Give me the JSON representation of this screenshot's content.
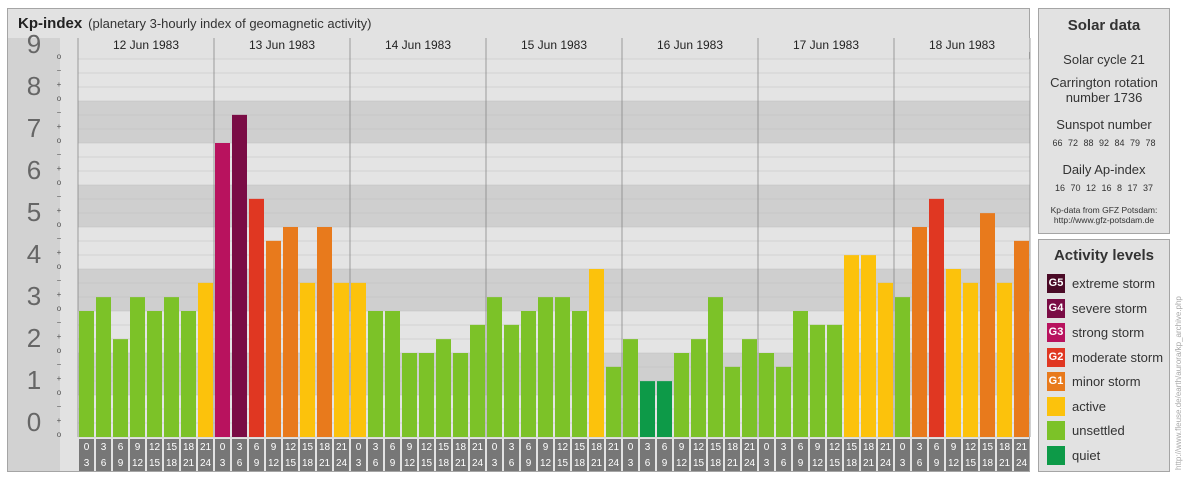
{
  "title": {
    "main": "Kp-index",
    "subtitle": "(planetary 3-hourly index of geomagnetic activity)"
  },
  "solar": {
    "heading": "Solar data",
    "cycle": "Solar cycle 21",
    "carrington_line1": "Carrington rotation",
    "carrington_line2": "number 1736",
    "sunspot_heading": "Sunspot number",
    "sunspot_values": "66 72 88 92 84 79 78",
    "ap_heading": "Daily Ap-index",
    "ap_values": "16 70 12 16 8 17 37",
    "source_line1": "Kp-data from GFZ Potsdam:",
    "source_line2": "http://www.gfz-potsdam.de"
  },
  "levels": {
    "heading": "Activity levels",
    "items": [
      {
        "code": "G5",
        "label": "extreme storm",
        "color": "#4a0a26"
      },
      {
        "code": "G4",
        "label": "severe storm",
        "color": "#7a0c45"
      },
      {
        "code": "G3",
        "label": "strong storm",
        "color": "#b8125e"
      },
      {
        "code": "G2",
        "label": "moderate storm",
        "color": "#e03722"
      },
      {
        "code": "G1",
        "label": "minor storm",
        "color": "#e87a1c"
      },
      {
        "code": "",
        "label": "active",
        "color": "#fcc20c"
      },
      {
        "code": "",
        "label": "unsettled",
        "color": "#7cc228"
      },
      {
        "code": "",
        "label": "quiet",
        "color": "#0d9a48"
      }
    ]
  },
  "side_credit": "http://www.fleuse.de/earth/aurora/kp_archive.php",
  "chart_data": {
    "type": "bar",
    "title": "Kp-index",
    "ylim": [
      0,
      9
    ],
    "y_ticks": [
      "0",
      "1",
      "2",
      "3",
      "4",
      "5",
      "6",
      "7",
      "8",
      "9"
    ],
    "sub_ticks": [
      "o",
      "+",
      "−"
    ],
    "dates": [
      "12 Jun 1983",
      "13 Jun 1983",
      "14 Jun 1983",
      "15 Jun 1983",
      "16 Jun 1983",
      "17 Jun 1983",
      "18 Jun 1983"
    ],
    "hour_start": [
      "0",
      "3",
      "6",
      "9",
      "12",
      "15",
      "18",
      "21"
    ],
    "hour_end": [
      "3",
      "6",
      "9",
      "12",
      "15",
      "18",
      "21",
      "24"
    ],
    "values": [
      [
        3.0,
        3.33,
        2.33,
        3.33,
        3.0,
        3.33,
        3.0,
        3.67
      ],
      [
        7.0,
        7.67,
        5.67,
        4.67,
        5.0,
        3.67,
        5.0,
        3.67
      ],
      [
        3.67,
        3.0,
        3.0,
        2.0,
        2.0,
        2.33,
        2.0,
        2.67
      ],
      [
        3.33,
        2.67,
        3.0,
        3.33,
        3.33,
        3.0,
        4.0,
        1.67
      ],
      [
        2.33,
        1.33,
        1.33,
        2.0,
        2.33,
        3.33,
        1.67,
        2.33
      ],
      [
        2.0,
        1.67,
        3.0,
        2.67,
        2.67,
        4.33,
        4.33,
        3.67
      ],
      [
        3.33,
        5.0,
        5.67,
        4.0,
        3.67,
        5.33,
        3.67,
        4.67
      ]
    ]
  }
}
